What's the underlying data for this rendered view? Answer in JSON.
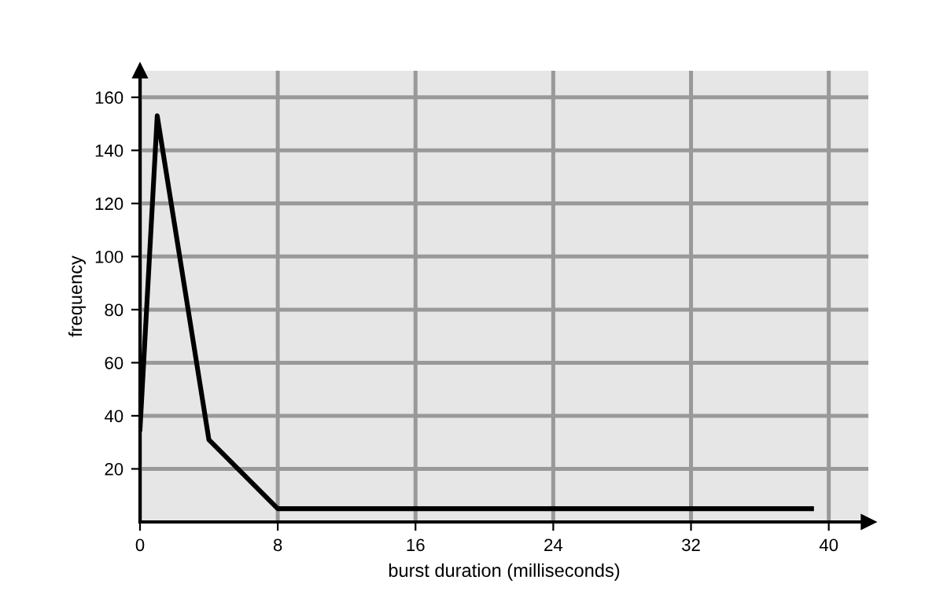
{
  "chart_data": {
    "type": "line",
    "xlabel": "burst duration (milliseconds)",
    "ylabel": "frequency",
    "x": [
      0,
      1,
      4,
      8,
      39
    ],
    "series": [
      {
        "color": "#000000",
        "values": [
          35,
          153,
          31,
          5,
          5
        ]
      }
    ],
    "xlim": [
      0,
      42.3
    ],
    "ylim": [
      0,
      170
    ],
    "xticks": [
      0,
      8,
      16,
      24,
      32,
      40
    ],
    "yticks": [
      20,
      40,
      60,
      80,
      100,
      120,
      140,
      160
    ],
    "grid": true,
    "legend": false,
    "marker": "none",
    "line_style": "solid"
  }
}
